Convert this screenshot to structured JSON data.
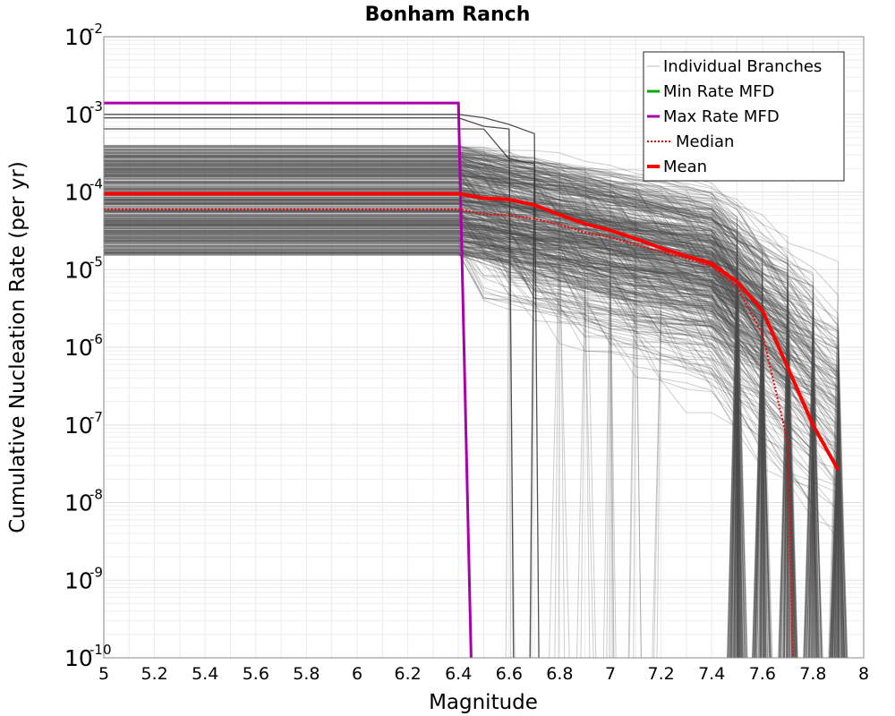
{
  "chart_data": {
    "type": "line",
    "title": "Bonham Ranch",
    "xlabel": "Magnitude",
    "ylabel": "Cumulative Nucleation Rate (per yr)",
    "xlim": [
      5,
      8
    ],
    "ylim_log10": [
      -10,
      -2
    ],
    "x_ticks": [
      "5",
      "5.2",
      "5.4",
      "5.6",
      "5.8",
      "6",
      "6.2",
      "6.4",
      "6.6",
      "6.8",
      "7",
      "7.2",
      "7.4",
      "7.6",
      "7.8",
      "8"
    ],
    "y_ticks": [
      {
        "base": "10",
        "exp": "-10"
      },
      {
        "base": "10",
        "exp": "-9"
      },
      {
        "base": "10",
        "exp": "-8"
      },
      {
        "base": "10",
        "exp": "-7"
      },
      {
        "base": "10",
        "exp": "-6"
      },
      {
        "base": "10",
        "exp": "-5"
      },
      {
        "base": "10",
        "exp": "-4"
      },
      {
        "base": "10",
        "exp": "-3"
      },
      {
        "base": "10",
        "exp": "-2"
      }
    ],
    "grid": true,
    "legend_position": "top-right",
    "legend": [
      {
        "label": "Individual Branches",
        "color": "#bbbbbb",
        "style": "solid-thin"
      },
      {
        "label": "Min Rate MFD",
        "color": "#00aa00",
        "style": "solid"
      },
      {
        "label": "Max Rate MFD",
        "color": "#aa00aa",
        "style": "solid"
      },
      {
        "label": "Median",
        "color": "#ff0000",
        "style": "dotted"
      },
      {
        "label": "Mean",
        "color": "#ff0000",
        "style": "solid-thick"
      }
    ],
    "series": [
      {
        "name": "Max Rate MFD",
        "color": "#aa00aa",
        "x": [
          5.0,
          6.4,
          6.45
        ],
        "y": [
          0.0014,
          0.0014,
          1e-10
        ]
      },
      {
        "name": "Median",
        "color": "#ff0000",
        "x": [
          5.0,
          6.4,
          6.5,
          6.6,
          6.7,
          6.8,
          6.9,
          7.0,
          7.1,
          7.2,
          7.3,
          7.4,
          7.5,
          7.6,
          7.7,
          7.72
        ],
        "y": [
          6e-05,
          6e-05,
          5.2e-05,
          5e-05,
          4.5e-05,
          3.8e-05,
          3e-05,
          2.6e-05,
          2.1e-05,
          1.7e-05,
          1.4e-05,
          1.1e-05,
          6e-06,
          1.5e-06,
          6e-08,
          1e-10
        ]
      },
      {
        "name": "Mean",
        "color": "#ff0000",
        "x": [
          5.0,
          6.4,
          6.5,
          6.6,
          6.7,
          6.8,
          6.9,
          7.0,
          7.1,
          7.2,
          7.3,
          7.4,
          7.5,
          7.6,
          7.7,
          7.8,
          7.9
        ],
        "y": [
          9.5e-05,
          9.5e-05,
          8.3e-05,
          8e-05,
          6.8e-05,
          5.1e-05,
          3.9e-05,
          3.2e-05,
          2.5e-05,
          1.9e-05,
          1.5e-05,
          1.2e-05,
          7e-06,
          3e-06,
          5.5e-07,
          1e-07,
          2.6e-08
        ]
      }
    ],
    "branches": {
      "count": 520,
      "plateau_range": [
        1.5e-05,
        0.0004
      ],
      "high_plateaus": [
        0.001,
        0.0009,
        0.00065
      ],
      "min_cutoff_magnitude": 6.4,
      "max_cutoff_magnitude": 7.95
    }
  }
}
